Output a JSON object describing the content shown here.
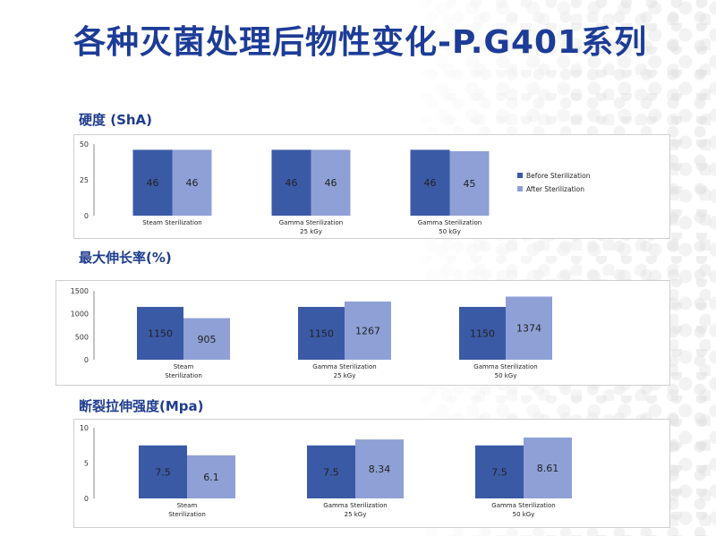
{
  "page": {
    "title": "各种灭菌处理后物性变化-P.G401系列"
  },
  "sections": [
    {
      "label": "硬度 (ShA)"
    },
    {
      "label": "最大伸长率(%)"
    },
    {
      "label": "断裂拉伸强度(Mpa)"
    }
  ],
  "colors": {
    "title": "#1c3c97",
    "before": "#3b5aa6",
    "after": "#8ea0d6",
    "axis": "#888888"
  },
  "chart_data": [
    {
      "type": "bar",
      "title": "硬度 (ShA)",
      "categories": [
        [
          "Steam Sterilization"
        ],
        [
          "Gamma Sterilization",
          "25 kGy"
        ],
        [
          "Gamma Sterilization",
          "50 kGy"
        ]
      ],
      "series": [
        {
          "name": "Before Sterilization",
          "values": [
            46,
            46,
            46
          ]
        },
        {
          "name": "After Sterilization",
          "values": [
            46,
            46,
            45
          ]
        }
      ],
      "ylim": [
        0,
        50
      ],
      "yticks": [
        0,
        25,
        50
      ],
      "legend": "right"
    },
    {
      "type": "bar",
      "title": "最大伸长率(%)",
      "categories": [
        [
          "Steam",
          "Sterilization"
        ],
        [
          "Gamma Sterilization",
          "25 kGy"
        ],
        [
          "Gamma Sterilization",
          "50 kGy"
        ]
      ],
      "series": [
        {
          "values": [
            1150,
            1150,
            1150
          ]
        },
        {
          "values": [
            905,
            1267,
            1374
          ]
        }
      ],
      "ylim": [
        0,
        1500
      ],
      "yticks": [
        0,
        500,
        1000,
        1500
      ]
    },
    {
      "type": "bar",
      "title": "断裂拉伸强度(Mpa)",
      "categories": [
        [
          "Steam",
          "Sterilization"
        ],
        [
          "Gamma Sterilization",
          "25 kGy"
        ],
        [
          "Gamma Sterilization",
          "50 kGy"
        ]
      ],
      "series": [
        {
          "values": [
            7.5,
            7.5,
            7.5
          ]
        },
        {
          "values": [
            6.1,
            8.34,
            8.61
          ]
        }
      ],
      "ylim": [
        0,
        10
      ],
      "yticks": [
        0,
        5,
        10
      ]
    }
  ]
}
